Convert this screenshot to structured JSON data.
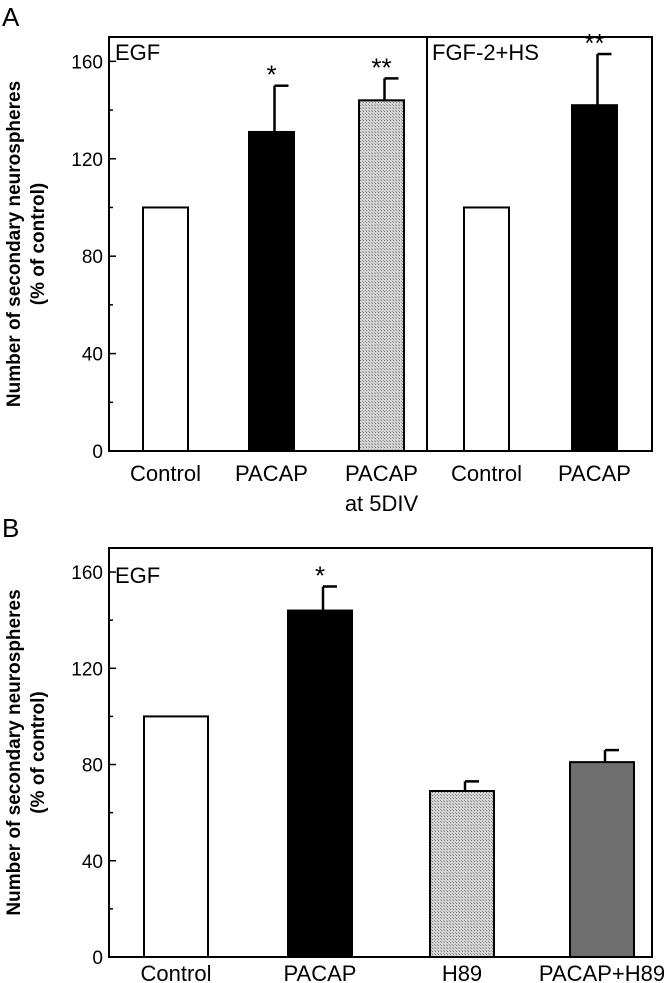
{
  "chart_data": [
    {
      "type": "bar",
      "panel": "A",
      "ylabel": "Number of secondary neurospheres",
      "ylabel_unit": "(% of control)",
      "ylim": [
        0,
        170
      ],
      "yticks": [
        0,
        40,
        80,
        120,
        160
      ],
      "grid": false,
      "groups": [
        {
          "condition": "EGF",
          "bars": [
            {
              "label": "Control",
              "value": 100,
              "error": 0,
              "fill": "#ffffff",
              "sig": ""
            },
            {
              "label": "PACAP",
              "value": 131,
              "error": 19,
              "fill": "#000000",
              "sig": "*"
            },
            {
              "label": "PACAP\nat 5DIV",
              "value": 144,
              "error": 9,
              "fill": "stipple",
              "sig": "**"
            }
          ]
        },
        {
          "condition": "FGF-2+HS",
          "bars": [
            {
              "label": "Control",
              "value": 100,
              "error": 0,
              "fill": "#ffffff",
              "sig": ""
            },
            {
              "label": "PACAP",
              "value": 142,
              "error": 21,
              "fill": "#000000",
              "sig": "**"
            }
          ]
        }
      ]
    },
    {
      "type": "bar",
      "panel": "B",
      "ylabel": "Number of secondary neurospheres",
      "ylabel_unit": "(% of control)",
      "ylim": [
        0,
        170
      ],
      "yticks": [
        0,
        40,
        80,
        120,
        160
      ],
      "grid": false,
      "groups": [
        {
          "condition": "EGF",
          "bars": [
            {
              "label": "Control",
              "value": 100,
              "error": 0,
              "fill": "#ffffff",
              "sig": ""
            },
            {
              "label": "PACAP",
              "value": 144,
              "error": 10,
              "fill": "#000000",
              "sig": "*"
            },
            {
              "label": "H89",
              "value": 69,
              "error": 4,
              "fill": "stipple",
              "sig": ""
            },
            {
              "label": "PACAP+H89",
              "value": 81,
              "error": 5,
              "fill": "#6e6e6e",
              "sig": ""
            }
          ]
        }
      ]
    }
  ]
}
